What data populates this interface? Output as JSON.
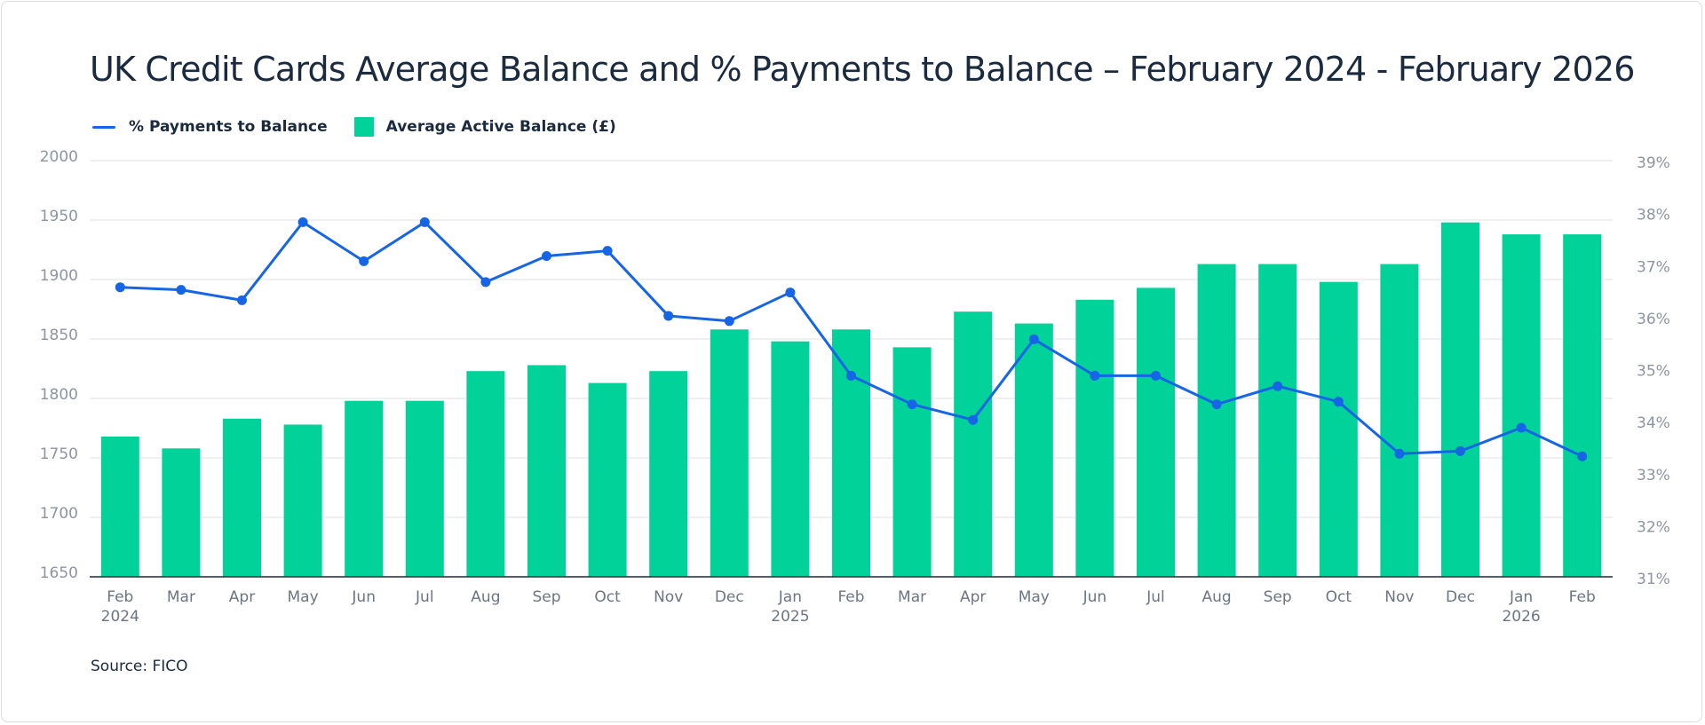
{
  "title": "UK Credit Cards Average Balance and % Payments to Balance – February 2024 - February 2026",
  "legend": {
    "line_label": "% Payments to Balance",
    "bar_label": "Average Active Balance (£)"
  },
  "source": "Source: FICO",
  "colors": {
    "bar": "#00d299",
    "line": "#1565e6",
    "grid": "#e3e6ea",
    "axis": "#1a2a3f"
  },
  "chart_data": {
    "type": "bar",
    "title": "UK Credit Cards Average Balance and % Payments to Balance – February 2024 - February 2026",
    "categories": [
      "Feb 2024",
      "Mar 2024",
      "Apr 2024",
      "May 2024",
      "Jun 2024",
      "Jul 2024",
      "Aug 2024",
      "Sep 2024",
      "Oct 2024",
      "Nov 2024",
      "Dec 2024",
      "Jan 2025",
      "Feb 2025",
      "Mar 2025",
      "Apr 2025",
      "May 2025",
      "Jun 2025",
      "Jul 2025",
      "Aug 2025",
      "Sep 2025",
      "Oct 2025",
      "Nov 2025",
      "Dec 2025",
      "Jan 2026",
      "Feb 2026"
    ],
    "x_tick_labels": [
      [
        "Feb",
        "2024"
      ],
      [
        "Mar",
        ""
      ],
      [
        "Apr",
        ""
      ],
      [
        "May",
        ""
      ],
      [
        "Jun",
        ""
      ],
      [
        "Jul",
        ""
      ],
      [
        "Aug",
        ""
      ],
      [
        "Sep",
        ""
      ],
      [
        "Oct",
        ""
      ],
      [
        "Nov",
        ""
      ],
      [
        "Dec",
        ""
      ],
      [
        "Jan",
        "2025"
      ],
      [
        "Feb",
        ""
      ],
      [
        "Mar",
        ""
      ],
      [
        "Apr",
        ""
      ],
      [
        "May",
        ""
      ],
      [
        "Jun",
        ""
      ],
      [
        "Jul",
        ""
      ],
      [
        "Aug",
        ""
      ],
      [
        "Sep",
        ""
      ],
      [
        "Oct",
        ""
      ],
      [
        "Nov",
        ""
      ],
      [
        "Dec",
        ""
      ],
      [
        "Jan",
        "2026"
      ],
      [
        "Feb",
        ""
      ]
    ],
    "series": [
      {
        "name": "Average Active Balance (£)",
        "type": "bar",
        "axis": "left",
        "values": [
          1768,
          1758,
          1783,
          1778,
          1798,
          1798,
          1823,
          1828,
          1813,
          1823,
          1858,
          1848,
          1858,
          1843,
          1873,
          1863,
          1883,
          1893,
          1913,
          1913,
          1898,
          1913,
          1948,
          1938,
          1938
        ]
      },
      {
        "name": "% Payments to Balance",
        "type": "line",
        "axis": "right",
        "values": [
          36.6,
          36.55,
          36.35,
          37.85,
          37.1,
          37.85,
          36.7,
          37.2,
          37.3,
          36.05,
          35.95,
          36.5,
          34.9,
          34.35,
          34.05,
          35.6,
          34.9,
          34.9,
          34.35,
          34.7,
          34.4,
          33.4,
          33.45,
          33.9,
          33.35
        ]
      }
    ],
    "y_left": {
      "ylim": [
        1650,
        2000
      ],
      "ticks": [
        "1650",
        "1700",
        "1750",
        "1800",
        "1850",
        "1900",
        "1950",
        "2000"
      ]
    },
    "y_right": {
      "ylim": [
        31,
        39
      ],
      "ticks": [
        "31%",
        "32%",
        "33%",
        "34%",
        "35%",
        "36%",
        "37%",
        "38%",
        "39%"
      ]
    },
    "grid": true,
    "legend_position": "top-left"
  }
}
